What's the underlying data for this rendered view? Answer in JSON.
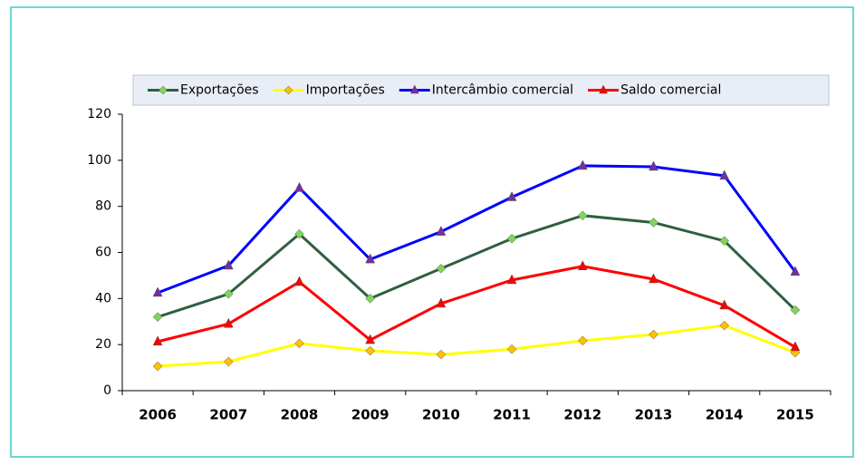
{
  "chart_data": {
    "type": "line",
    "categories": [
      "2006",
      "2007",
      "2008",
      "2009",
      "2010",
      "2011",
      "2012",
      "2013",
      "2014",
      "2015"
    ],
    "series": [
      {
        "name": "Exportações",
        "color": "#2f5f3f",
        "marker": "diamond",
        "marker_color": "#7fd65a",
        "values": [
          32,
          42,
          68,
          40,
          53,
          66,
          76,
          73,
          65,
          35
        ]
      },
      {
        "name": "Importações",
        "color": "#ffff00",
        "marker": "diamond",
        "marker_color": "#ffc000",
        "values": [
          10.6,
          12.6,
          20.5,
          17.3,
          15.7,
          18,
          21.7,
          24.4,
          28.3,
          16.5
        ]
      },
      {
        "name": "Intercâmbio comercial",
        "color": "#0000ff",
        "marker": "triangle",
        "marker_color": "#7030a0",
        "values": [
          42.5,
          54.3,
          88,
          57,
          69,
          84,
          97.6,
          97.2,
          93.3,
          51.6
        ]
      },
      {
        "name": "Saldo comercial",
        "color": "#ff0000",
        "marker": "triangle",
        "marker_color": "#ff0000",
        "values": [
          21.3,
          29,
          47.2,
          22,
          37.8,
          48,
          54,
          48.4,
          37,
          18.9
        ]
      }
    ],
    "ylim": [
      0,
      120
    ],
    "yticks": [
      0,
      20,
      40,
      60,
      80,
      100,
      120
    ],
    "grid": false,
    "legend": "top"
  }
}
